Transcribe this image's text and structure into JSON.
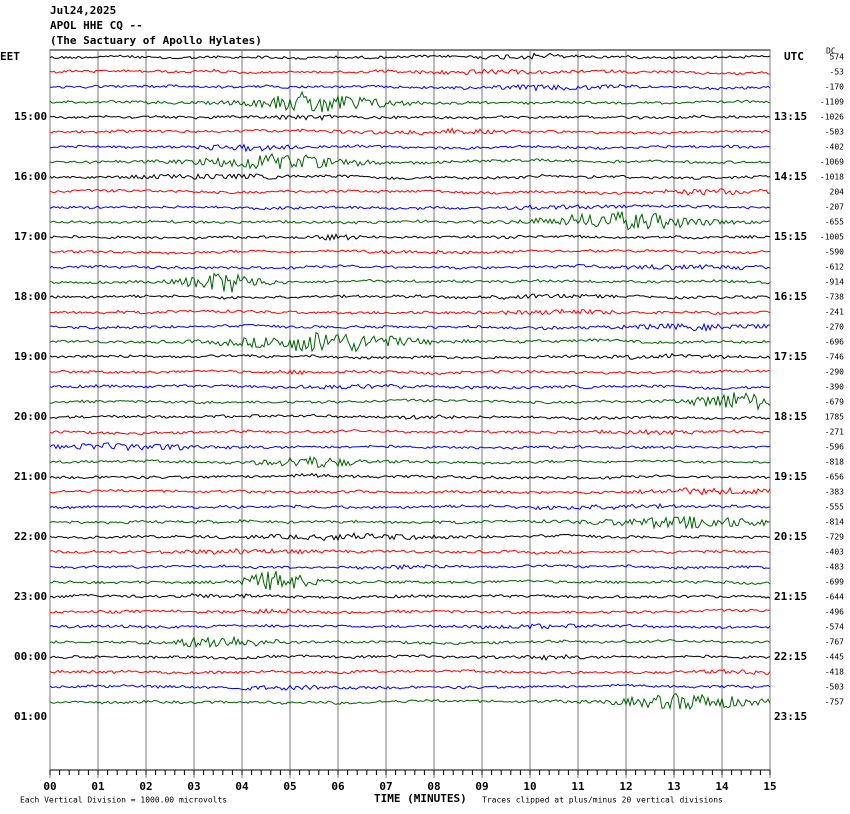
{
  "header": {
    "date": "Jul24,2025",
    "station": "APOL HHE CQ --",
    "site": "(The Sactuary of Apollo Hylates)"
  },
  "chart_data": {
    "type": "helicorder",
    "left_axis_label": "EET",
    "right_axis_label": "UTC",
    "dc_label": "DC",
    "left_times": [
      "15:00",
      "16:00",
      "17:00",
      "18:00",
      "19:00",
      "20:00",
      "21:00",
      "22:00",
      "23:00",
      "00:00",
      "01:00"
    ],
    "right_times": [
      "13:15",
      "14:15",
      "15:15",
      "16:15",
      "17:15",
      "18:15",
      "19:15",
      "20:15",
      "21:15",
      "22:15",
      "23:15"
    ],
    "dc_offsets": [
      574,
      -53,
      -170,
      -1109,
      -1026,
      -503,
      -402,
      -1069,
      -1018,
      204,
      -207,
      -655,
      -1005,
      -590,
      -612,
      -914,
      -738,
      -241,
      -270,
      -696,
      -746,
      -290,
      -390,
      -679,
      1785,
      -271,
      -596,
      -818,
      -656,
      -383,
      -555,
      -814,
      -729,
      -403,
      -483,
      -699,
      -644,
      -496,
      -574,
      -767,
      -445,
      -418,
      -503,
      -757
    ],
    "trace_colors": [
      "#000000",
      "#ff0000",
      "#0000ff",
      "#006400"
    ],
    "xlim": [
      0,
      15
    ],
    "xticks": [
      {
        "value": 0,
        "label": "00"
      },
      {
        "value": 1,
        "label": "01"
      },
      {
        "value": 2,
        "label": "02"
      },
      {
        "value": 3,
        "label": "03"
      },
      {
        "value": 4,
        "label": "04"
      },
      {
        "value": 5,
        "label": "05"
      },
      {
        "value": 6,
        "label": "06"
      },
      {
        "value": 7,
        "label": "07"
      },
      {
        "value": 8,
        "label": "08"
      },
      {
        "value": 9,
        "label": "09"
      },
      10,
      11,
      12,
      13,
      14,
      15
    ],
    "xlabel": "TIME (MINUTES)",
    "scale_note": "Each Vertical Division = 1000.00 microvolts",
    "clip_note": "Traces clipped at plus/minus 20 vertical divisions"
  }
}
